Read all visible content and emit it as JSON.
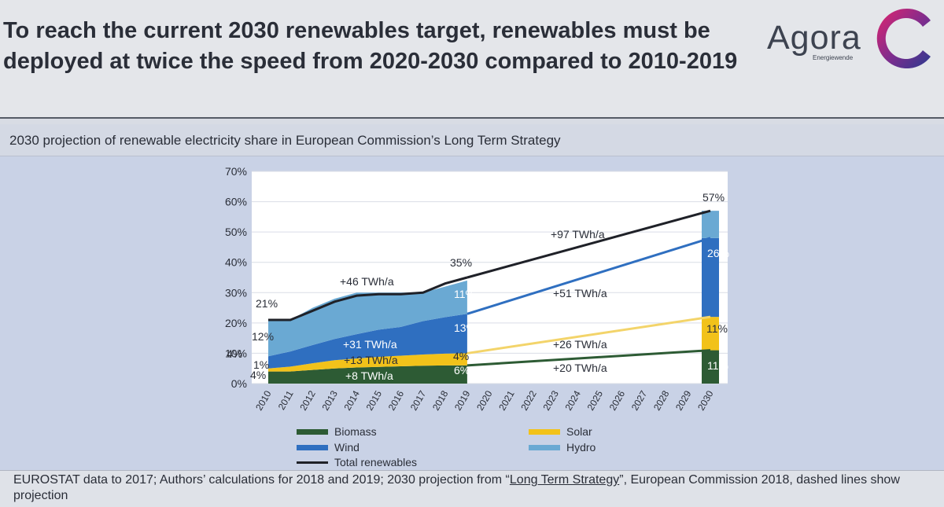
{
  "header": {
    "title": "To reach the current 2030 renewables target, renewables must be deployed at twice the speed from 2020-2030 compared to 2010-2019",
    "logo_name": "Agora",
    "logo_sub": "Energiewende"
  },
  "subtitle": "2030 projection of renewable electricity share in European Commission’s Long Term Strategy",
  "source": {
    "before": "EUROSTAT data to 2017; Authors’ calculations for 2018 and 2019; 2030 projection from “",
    "link": "Long Term Strategy",
    "after": "”, European Commission 2018, dashed lines show projection"
  },
  "colors": {
    "biomass": "#2d5b34",
    "solar": "#f2c21a",
    "wind": "#2f6fc0",
    "hydro": "#6aa9d3",
    "total": "#1f2128",
    "plot_bg": "#ffffff",
    "grid": "#d9dde6"
  },
  "chart_data": {
    "type": "area",
    "title": "2030 projection of renewable electricity share in European Commission’s Long Term Strategy",
    "x": [
      "2010",
      "2011",
      "2012",
      "2013",
      "2014",
      "2015",
      "2016",
      "2017",
      "2018",
      "2019",
      "2020",
      "2021",
      "2022",
      "2023",
      "2024",
      "2025",
      "2026",
      "2027",
      "2028",
      "2029",
      "2030"
    ],
    "ylim": [
      0,
      70
    ],
    "yticks": [
      "0%",
      "10%",
      "20%",
      "30%",
      "40%",
      "50%",
      "60%",
      "70%"
    ],
    "stacked_series": [
      {
        "name": "Biomass",
        "key": "biomass",
        "values": [
          4,
          4,
          4.5,
          5,
          5.3,
          5.5,
          5.7,
          5.9,
          6,
          6
        ]
      },
      {
        "name": "Solar",
        "key": "solar",
        "values": [
          1,
          1.6,
          2.2,
          2.7,
          3,
          3.3,
          3.5,
          3.7,
          3.9,
          4
        ]
      },
      {
        "name": "Wind",
        "key": "wind",
        "values": [
          4,
          5,
          6,
          7,
          8,
          9,
          9.5,
          11,
          12,
          13
        ]
      },
      {
        "name": "Hydro",
        "key": "hydro",
        "values": [
          12,
          10.4,
          12.3,
          13.3,
          13.7,
          12.2,
          11.3,
          9.4,
          10.1,
          11
        ]
      }
    ],
    "bar_2030": {
      "biomass": 11,
      "solar": 11,
      "wind": 26,
      "hydro": 9
    },
    "projection_lines": {
      "total": [
        [
          2019,
          35
        ],
        [
          2030,
          57
        ]
      ],
      "wind": [
        [
          2019,
          23
        ],
        [
          2030,
          48
        ]
      ],
      "solar": [
        [
          2019,
          10
        ],
        [
          2030,
          22
        ]
      ],
      "biomass": [
        [
          2019,
          6
        ],
        [
          2030,
          11
        ]
      ]
    },
    "total_renewables": [
      21,
      21,
      24,
      27,
      29,
      29.5,
      29.5,
      30,
      33,
      35
    ],
    "labels": {
      "total_2010": "21%",
      "total_2019": "35%",
      "total_2030": "57%",
      "hydro_2010": "12%",
      "wind_2010": "4%",
      "solar_2010": "1%",
      "biomass_2010": "4%",
      "hydro_2019": "11%",
      "wind_2019": "13%",
      "solar_2019": "4%",
      "biomass_2019": "6%",
      "wind_2030": "26%",
      "solar_2030": "11%",
      "biomass_2030": "11%",
      "hist_total": "+46 TWh/a",
      "hist_wind": "+31 TWh/a",
      "hist_solar": "+13 TWh/a",
      "hist_biomass": "+8 TWh/a",
      "proj_total": "+97 TWh/a",
      "proj_wind": "+51 TWh/a",
      "proj_solar": "+26 TWh/a",
      "proj_biomass": "+20 TWh/a"
    },
    "legend": [
      {
        "name": "Biomass",
        "key": "biomass",
        "kind": "area"
      },
      {
        "name": "Wind",
        "key": "wind",
        "kind": "area"
      },
      {
        "name": "Total renewables",
        "key": "total",
        "kind": "line"
      },
      {
        "name": "Solar",
        "key": "solar",
        "kind": "area"
      },
      {
        "name": "Hydro",
        "key": "hydro",
        "kind": "area"
      }
    ]
  }
}
